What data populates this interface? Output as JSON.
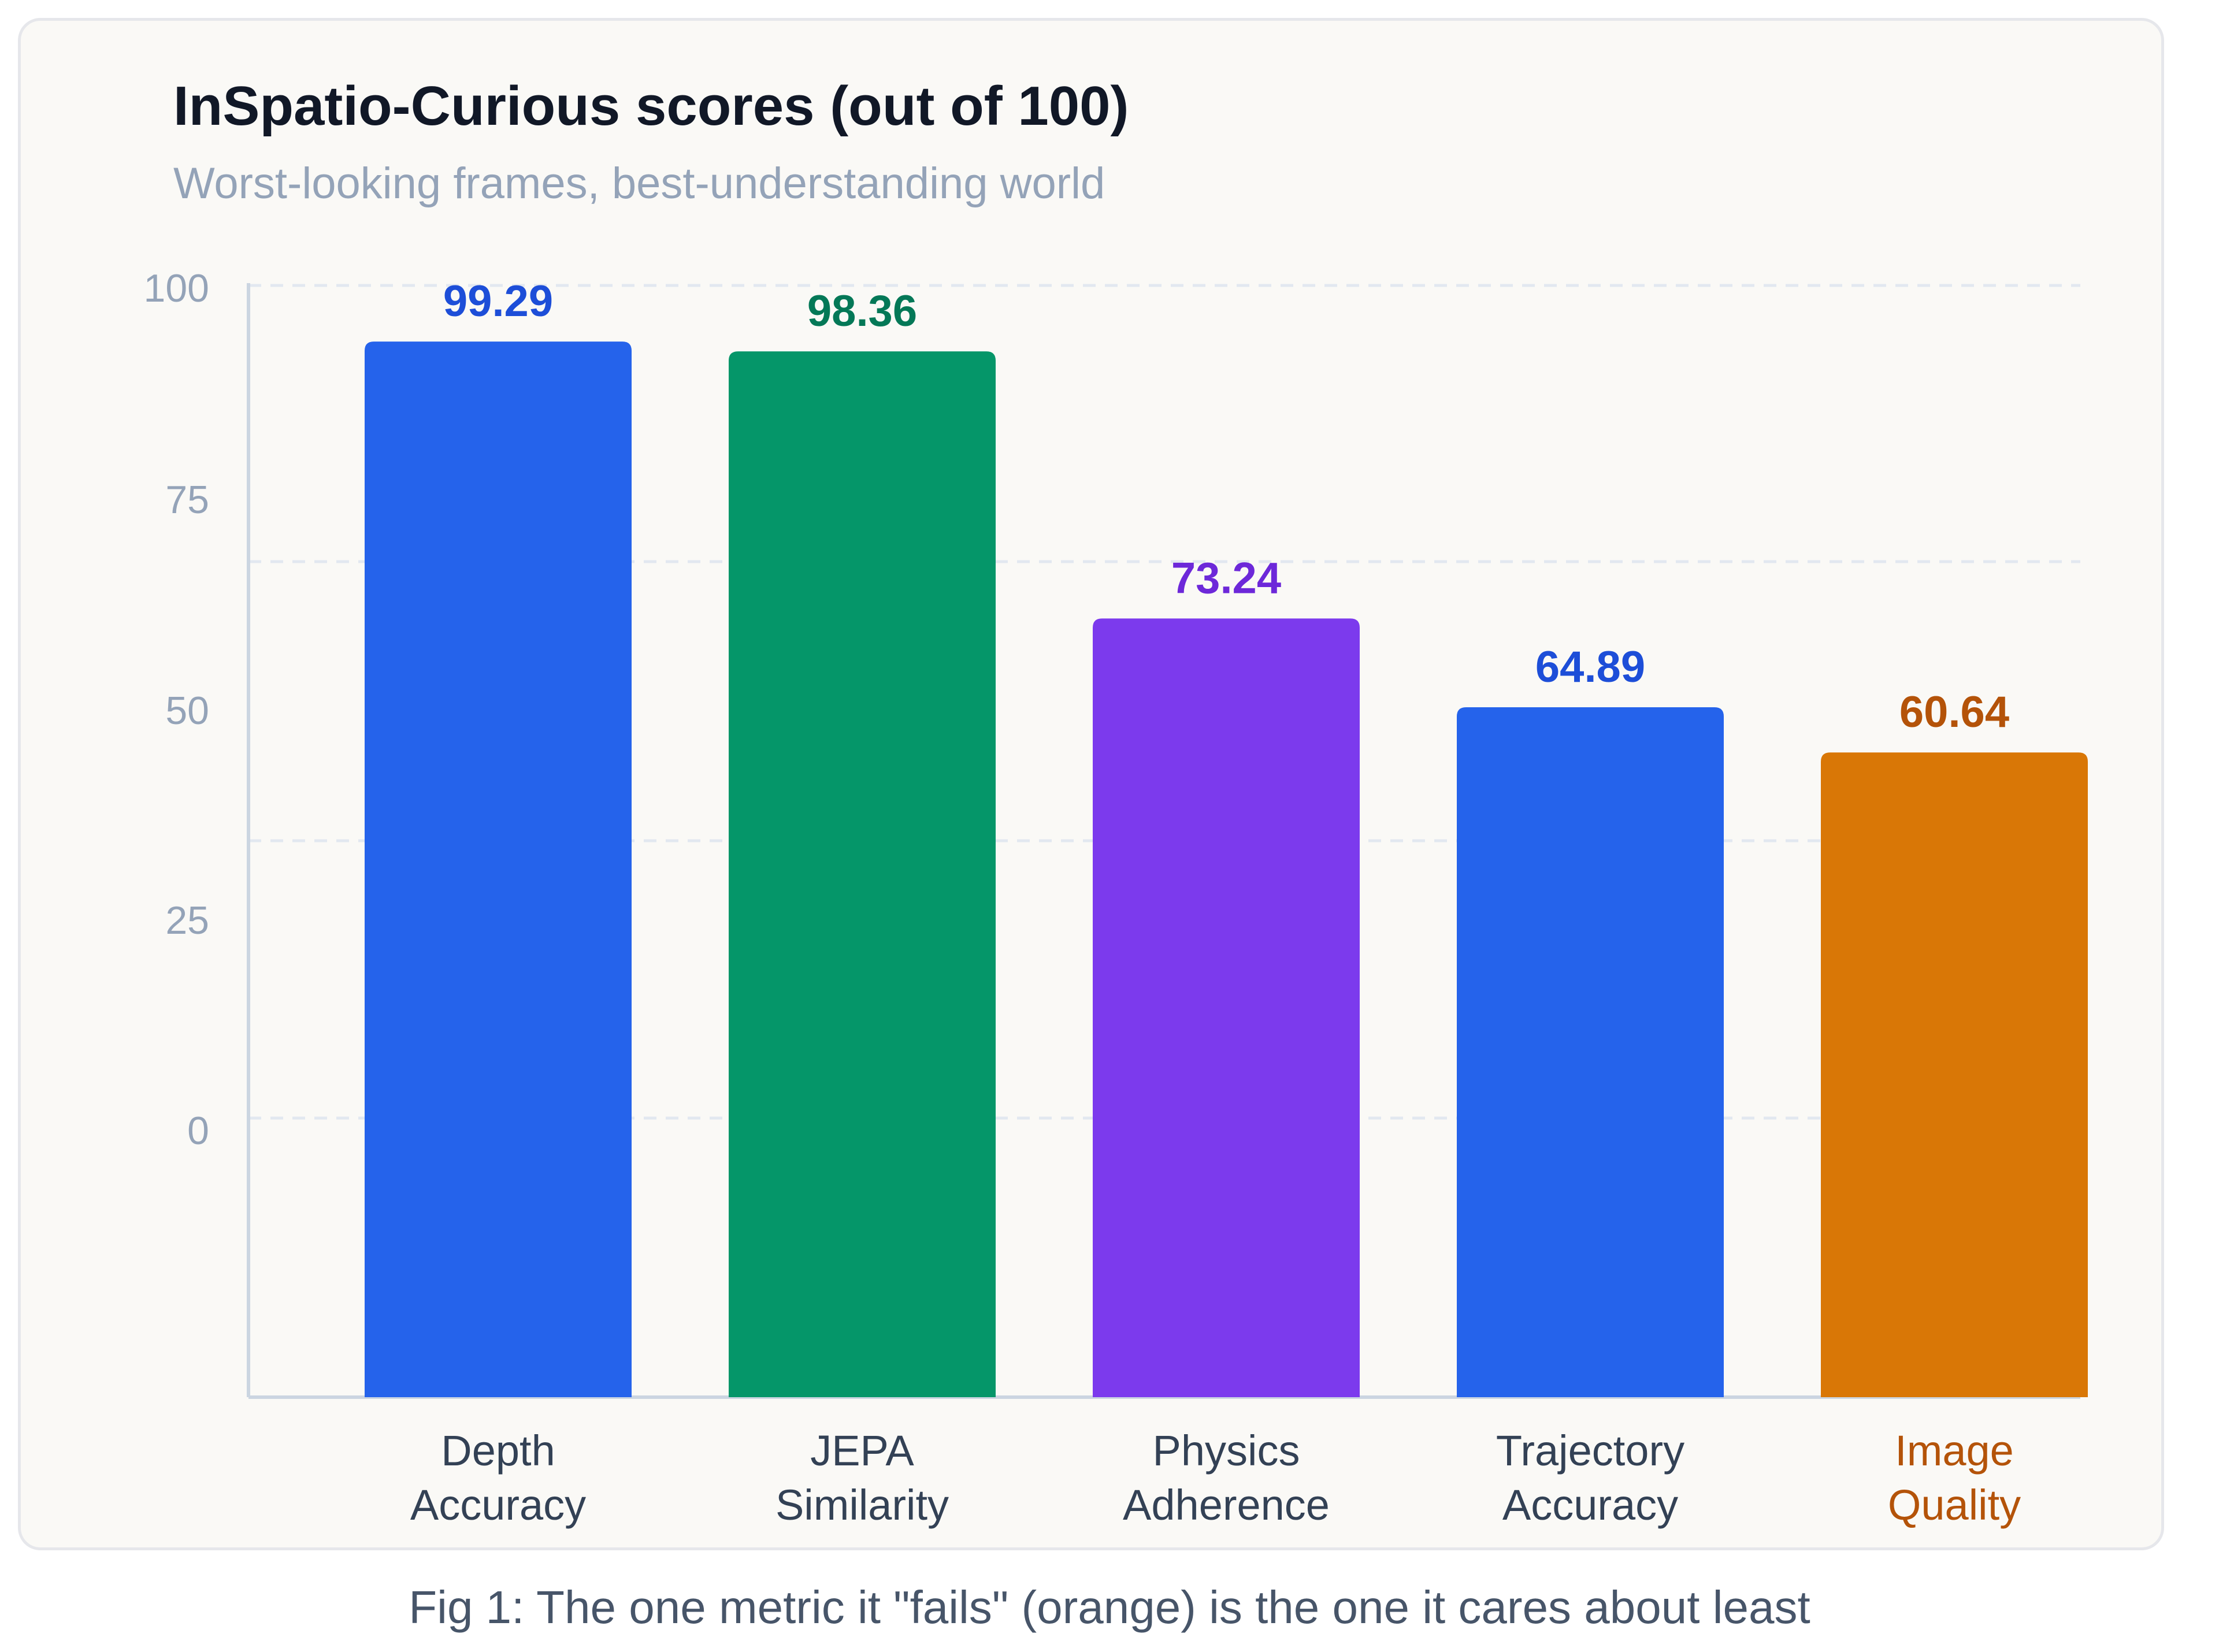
{
  "figure": {
    "caption": "Fig 1: The one metric it \"fails\" (orange) is the one it cares about least"
  },
  "chart_data": {
    "type": "bar",
    "title": "InSpatio-Curious scores (out of 100)",
    "subtitle": "Worst-looking frames, best-understanding world",
    "xlabel": "",
    "ylabel": "",
    "yticks": [
      "100",
      "75",
      "50",
      "25",
      "0"
    ],
    "categories": [
      [
        "Depth",
        "Accuracy"
      ],
      [
        "JEPA",
        "Similarity"
      ],
      [
        "Physics",
        "Adherence"
      ],
      [
        "Trajectory",
        "Accuracy"
      ],
      [
        "Image",
        "Quality"
      ]
    ],
    "values": [
      99.29,
      98.36,
      73.24,
      64.89,
      60.64
    ],
    "value_labels": [
      "99.29",
      "98.36",
      "73.24",
      "64.89",
      "60.64"
    ],
    "colors": {
      "bars": [
        "#2563eb",
        "#059669",
        "#7c3aed",
        "#2563eb",
        "#d97706"
      ],
      "value_labels": [
        "#1d4ed8",
        "#047857",
        "#6d28d9",
        "#1d4ed8",
        "#b45309"
      ],
      "category_labels": [
        "#334155",
        "#334155",
        "#334155",
        "#334155",
        "#b45309"
      ],
      "highlight": "#d97706",
      "axis": "#cbd5e1",
      "grid": "#e2e8f0"
    },
    "grid": true,
    "legend": "none"
  }
}
